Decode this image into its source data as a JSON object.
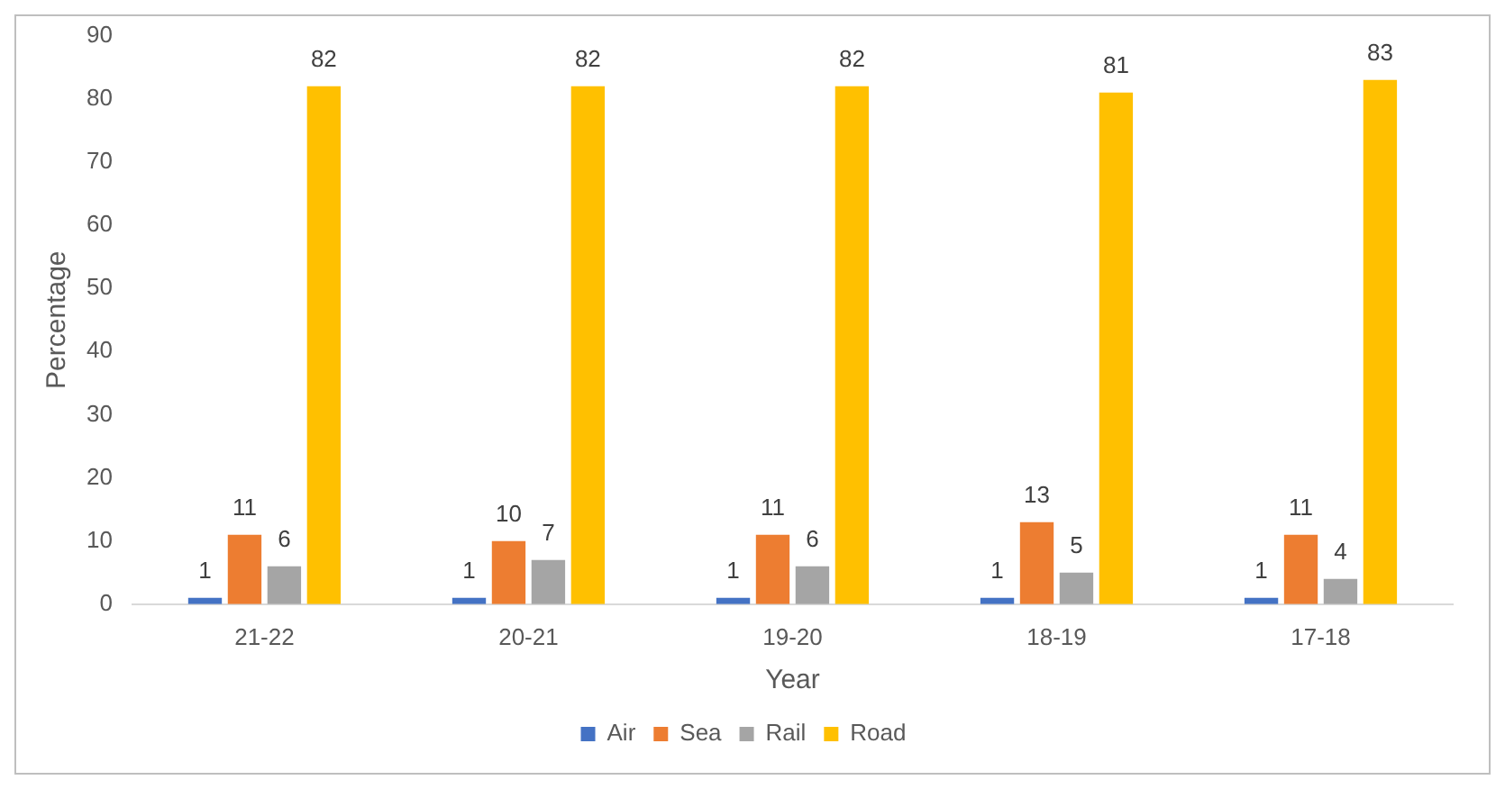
{
  "chart_data": {
    "type": "bar",
    "xlabel": "Year",
    "ylabel": "Percentage",
    "categories": [
      "21-22",
      "20-21",
      "19-20",
      "18-19",
      "17-18"
    ],
    "series": [
      {
        "name": "Air",
        "color": "#4472c4",
        "values": [
          1,
          1,
          1,
          1,
          1
        ]
      },
      {
        "name": "Sea",
        "color": "#ed7d31",
        "values": [
          11,
          10,
          11,
          13,
          11
        ]
      },
      {
        "name": "Rail",
        "color": "#a5a5a5",
        "values": [
          6,
          7,
          6,
          5,
          4
        ]
      },
      {
        "name": "Road",
        "color": "#ffc000",
        "values": [
          82,
          82,
          82,
          81,
          83
        ]
      }
    ],
    "ylim": [
      0,
      90
    ],
    "yticks": [
      0,
      10,
      20,
      30,
      40,
      50,
      60,
      70,
      80,
      90
    ],
    "data_labels": true,
    "legend": "bottom",
    "grid": false
  }
}
